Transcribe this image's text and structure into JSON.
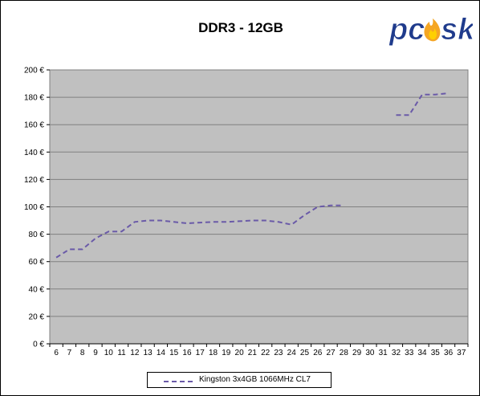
{
  "logo": {
    "text_pc": "pc",
    "text_o": "o",
    "text_sk": "sk",
    "accent": "#f5a623",
    "brand": "#1f3b8c"
  },
  "colors": {
    "plot_bg": "#c0c0c0",
    "grid": "#808080",
    "series": "#6a5aa8",
    "frame": "#000000"
  },
  "chart_data": {
    "type": "line",
    "title": "DDR3 - 12GB",
    "xlabel": "",
    "ylabel": "",
    "x": [
      6,
      7,
      8,
      9,
      10,
      11,
      12,
      13,
      14,
      15,
      16,
      17,
      18,
      19,
      20,
      21,
      22,
      23,
      24,
      25,
      26,
      27,
      28,
      29,
      30,
      31,
      32,
      33,
      34,
      35,
      36,
      37
    ],
    "xlim": [
      6,
      37
    ],
    "ylim": [
      0,
      200
    ],
    "y_ticks": [
      0,
      20,
      40,
      60,
      80,
      100,
      120,
      140,
      160,
      180,
      200
    ],
    "y_tick_labels": [
      "0 €",
      "20 €",
      "40 €",
      "60 €",
      "80 €",
      "100 €",
      "120 €",
      "140 €",
      "160 €",
      "180 €",
      "200 €"
    ],
    "x_tick_labels": [
      "6",
      "7",
      "8",
      "9",
      "10",
      "11",
      "12",
      "13",
      "14",
      "15",
      "16",
      "17",
      "18",
      "19",
      "20",
      "21",
      "22",
      "23",
      "24",
      "25",
      "26",
      "27",
      "28",
      "29",
      "30",
      "31",
      "32",
      "33",
      "34",
      "35",
      "36",
      "37"
    ],
    "grid": true,
    "legend_position": "bottom",
    "series": [
      {
        "name": "Kingston 3x4GB 1066MHz CL7",
        "line_style": "dashed",
        "values": [
          63,
          69,
          69,
          77,
          82,
          82,
          89,
          90,
          90,
          89,
          88,
          88.5,
          89,
          89,
          89.5,
          90,
          90,
          89,
          87,
          94,
          100,
          101,
          101,
          null,
          null,
          null,
          167,
          167,
          182,
          182,
          183,
          null
        ]
      }
    ]
  }
}
